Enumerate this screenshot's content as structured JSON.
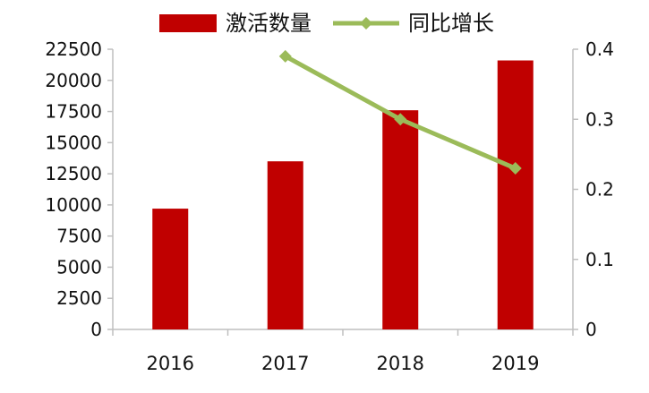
{
  "chart_data": {
    "type": "bar",
    "categories": [
      "2016",
      "2017",
      "2018",
      "2019"
    ],
    "series": [
      {
        "name": "激活数量",
        "type": "bar",
        "axis": "left",
        "color": "#c00000",
        "values": [
          9700,
          13500,
          17600,
          21600
        ]
      },
      {
        "name": "同比增长",
        "type": "line",
        "axis": "right",
        "color": "#9bbb59",
        "values": [
          null,
          0.39,
          0.3,
          0.23
        ]
      }
    ],
    "y_left": {
      "ylim": [
        0,
        22500
      ],
      "ticks": [
        "0",
        "2500",
        "5000",
        "7500",
        "10000",
        "12500",
        "15000",
        "17500",
        "20000",
        "22500"
      ]
    },
    "y_right": {
      "ylim": [
        0,
        0.4
      ],
      "ticks": [
        "0",
        "0.1",
        "0.2",
        "0.3",
        "0.4"
      ]
    },
    "legend_position": "top-center",
    "grid": false
  }
}
